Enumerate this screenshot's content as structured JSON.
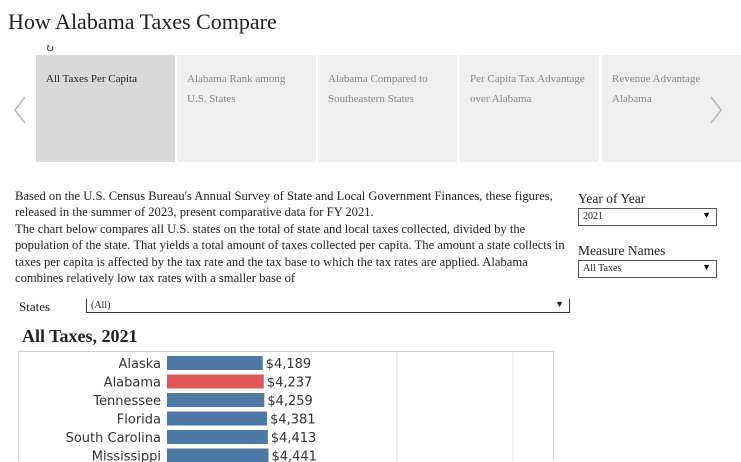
{
  "page": {
    "title": "How Alabama Taxes Compare"
  },
  "loading_icon": "refresh-icon",
  "carousel": {
    "prev_icon": "chevron-left-icon",
    "next_icon": "chevron-right-icon",
    "tabs": [
      {
        "label": "All Taxes Per Capita",
        "active": true
      },
      {
        "label": "Alabama Rank among U.S. States",
        "active": false
      },
      {
        "label": "Alabama Compared to Southeastern States",
        "active": false
      },
      {
        "label": "Per Capita Tax Advantage over Alabama",
        "active": false
      },
      {
        "label": "Revenue Advantage Alabama",
        "active": false
      }
    ]
  },
  "description": {
    "p1": "Based on the U.S. Census Bureau's Annual Survey of State and Local Government Finances, these figures, released in the summer of 2023, present comparative data for FY 2021.",
    "p2": "The chart below compares all U.S. states on the total of state and local taxes collected, divided by the population of the state. That yields a total amount of taxes collected per capita. The amount a state collects in taxes per capita is affected by the tax rate and the tax base to which the tax rates are applied. Alabama combines relatively low tax rates with a smaller base of"
  },
  "filters": {
    "year": {
      "label": "Year of Year",
      "value": "2021"
    },
    "measure": {
      "label": "Measure Names",
      "value": "All Taxes"
    },
    "states": {
      "label": "States",
      "value": "(All)"
    }
  },
  "chart_data": {
    "type": "bar",
    "orientation": "horizontal",
    "title": "All Taxes, 2021",
    "categories": [
      "Alaska",
      "Alabama",
      "Tennessee",
      "Florida",
      "South Carolina",
      "Mississippi"
    ],
    "values": [
      4189,
      4237,
      4259,
      4381,
      4413,
      4441
    ],
    "labels": [
      "$4,189",
      "$4,237",
      "$4,259",
      "$4,381",
      "$4,413",
      "$4,441"
    ],
    "highlight": "Alabama",
    "colors": {
      "default": "#4e79a7",
      "highlight": "#e15759"
    }
  }
}
